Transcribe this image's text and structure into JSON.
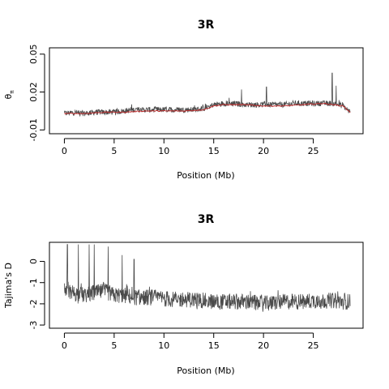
{
  "chart_data": [
    {
      "type": "line",
      "title": "3R",
      "xlabel": "Position (Mb)",
      "ylabel": "θπ",
      "ylabel_symbol": "θ",
      "ylabel_subscript": "π",
      "xlim": [
        -1.5,
        30
      ],
      "ylim": [
        -0.013,
        0.055
      ],
      "x_ticks": [
        0,
        5,
        10,
        15,
        20,
        25
      ],
      "y_ticks": [
        -0.01,
        0.02,
        0.05
      ],
      "y_tick_labels": [
        "-0.01",
        "0.02",
        "0.05"
      ],
      "x_range": [
        0,
        28.7
      ],
      "series": [
        {
          "style": "raw",
          "color": "#4a4a4a",
          "x": [
            0,
            1,
            2,
            3,
            4,
            5,
            6,
            7,
            8,
            9,
            10,
            11,
            12,
            13,
            14,
            15,
            16,
            17,
            18,
            19,
            20,
            21,
            22,
            23,
            24,
            25,
            26,
            27,
            28,
            28.7
          ],
          "y": [
            0.003,
            0.004,
            0.003,
            0.004,
            0.004,
            0.004,
            0.005,
            0.006,
            0.006,
            0.006,
            0.006,
            0.006,
            0.006,
            0.006,
            0.007,
            0.01,
            0.011,
            0.011,
            0.01,
            0.01,
            0.01,
            0.01,
            0.01,
            0.011,
            0.011,
            0.011,
            0.011,
            0.011,
            0.009,
            0.004
          ],
          "peaks": [
            {
              "x": 17.8,
              "y": 0.022
            },
            {
              "x": 20.3,
              "y": 0.024
            },
            {
              "x": 26.9,
              "y": 0.035
            },
            {
              "x": 27.3,
              "y": 0.025
            }
          ]
        },
        {
          "style": "smoothed",
          "color": "#c03030",
          "x": [
            0,
            2,
            4,
            6,
            8,
            10,
            12,
            14,
            15,
            16,
            18,
            20,
            22,
            24,
            26,
            28,
            28.7
          ],
          "y": [
            0.003,
            0.003,
            0.004,
            0.004,
            0.005,
            0.005,
            0.005,
            0.006,
            0.009,
            0.01,
            0.01,
            0.009,
            0.009,
            0.01,
            0.011,
            0.009,
            0.004
          ]
        }
      ]
    },
    {
      "type": "line",
      "title": "3R",
      "xlabel": "Position (Mb)",
      "ylabel": "Tajima's D",
      "xlim": [
        -1.5,
        30
      ],
      "ylim": [
        -3.15,
        0.9
      ],
      "x_ticks": [
        0,
        5,
        10,
        15,
        20,
        25
      ],
      "y_ticks": [
        -3,
        -2,
        -1,
        0
      ],
      "y_tick_labels": [
        "-3",
        "-2",
        "-1",
        "0"
      ],
      "x_range": [
        0,
        28.7
      ],
      "series": [
        {
          "style": "raw",
          "color": "#4a4a4a",
          "x": [
            0,
            1,
            2,
            3,
            4,
            5,
            6,
            7,
            8,
            9,
            10,
            11,
            12,
            13,
            14,
            15,
            16,
            17,
            18,
            19,
            20,
            21,
            22,
            23,
            24,
            25,
            26,
            27,
            28,
            28.7
          ],
          "y": [
            -1.3,
            -1.5,
            -1.6,
            -1.5,
            -1.4,
            -1.6,
            -1.6,
            -1.7,
            -1.7,
            -1.7,
            -1.75,
            -1.8,
            -1.8,
            -1.8,
            -1.85,
            -1.9,
            -1.9,
            -1.9,
            -1.9,
            -1.95,
            -2.0,
            -1.95,
            -1.9,
            -1.9,
            -1.9,
            -1.85,
            -1.85,
            -1.85,
            -1.9,
            -1.9
          ],
          "peaks": [
            {
              "x": 0.3,
              "y": 0.8
            },
            {
              "x": 1.4,
              "y": 0.8
            },
            {
              "x": 2.5,
              "y": 0.8
            },
            {
              "x": 3.0,
              "y": 0.8
            },
            {
              "x": 4.4,
              "y": 0.7
            },
            {
              "x": 5.8,
              "y": 0.3
            },
            {
              "x": 7.0,
              "y": 0.1
            }
          ]
        }
      ]
    }
  ]
}
